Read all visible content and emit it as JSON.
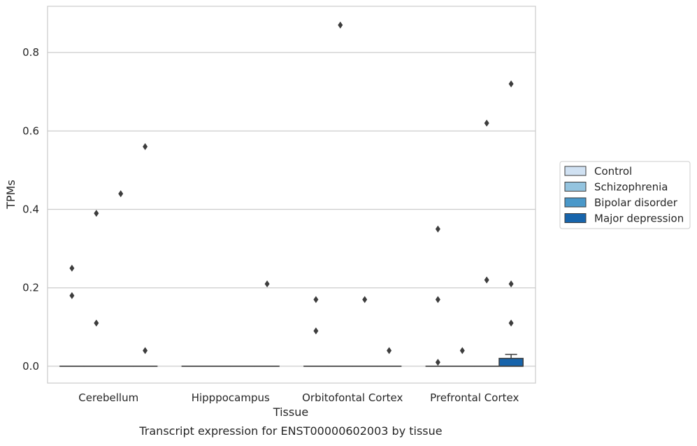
{
  "chart_data": {
    "type": "box",
    "title": "",
    "caption": "Transcript expression for ENST00000602003 by tissue",
    "xlabel": "Tissue",
    "ylabel": "TPMs",
    "ylim": [
      -0.043,
      0.918
    ],
    "yticks": [
      0.0,
      0.2,
      0.4,
      0.6,
      0.8
    ],
    "ytick_labels": [
      "0.0",
      "0.2",
      "0.4",
      "0.6",
      "0.8"
    ],
    "grid": "horizontal",
    "legend_position": "right",
    "categories": [
      "Cerebellum",
      "Hipppocampus",
      "Orbitofontal Cortex",
      "Prefrontal Cortex"
    ],
    "series": [
      {
        "name": "Control",
        "color": "#d0e1f2",
        "boxes": [
          {
            "q1": 0,
            "median": 0,
            "q3": 0,
            "whisker_low": 0,
            "whisker_high": 0,
            "outliers": [
              0.25,
              0.18
            ]
          },
          {
            "q1": 0,
            "median": 0,
            "q3": 0,
            "whisker_low": 0,
            "whisker_high": 0,
            "outliers": []
          },
          {
            "q1": 0,
            "median": 0,
            "q3": 0,
            "whisker_low": 0,
            "whisker_high": 0,
            "outliers": [
              0.17,
              0.09
            ]
          },
          {
            "q1": 0,
            "median": 0,
            "q3": 0,
            "whisker_low": 0,
            "whisker_high": 0,
            "outliers": [
              0.35,
              0.17,
              0.01
            ]
          }
        ]
      },
      {
        "name": "Schizophrenia",
        "color": "#94c4df",
        "boxes": [
          {
            "q1": 0,
            "median": 0,
            "q3": 0,
            "whisker_low": 0,
            "whisker_high": 0,
            "outliers": [
              0.39,
              0.11
            ]
          },
          {
            "q1": 0,
            "median": 0,
            "q3": 0,
            "whisker_low": 0,
            "whisker_high": 0,
            "outliers": []
          },
          {
            "q1": 0,
            "median": 0,
            "q3": 0,
            "whisker_low": 0,
            "whisker_high": 0,
            "outliers": [
              0.87
            ]
          },
          {
            "q1": 0,
            "median": 0,
            "q3": 0,
            "whisker_low": 0,
            "whisker_high": 0,
            "outliers": [
              0.04
            ]
          }
        ]
      },
      {
        "name": "Bipolar disorder",
        "color": "#4a98c9",
        "boxes": [
          {
            "q1": 0,
            "median": 0,
            "q3": 0,
            "whisker_low": 0,
            "whisker_high": 0,
            "outliers": [
              0.44
            ]
          },
          {
            "q1": 0,
            "median": 0,
            "q3": 0,
            "whisker_low": 0,
            "whisker_high": 0,
            "outliers": []
          },
          {
            "q1": 0,
            "median": 0,
            "q3": 0,
            "whisker_low": 0,
            "whisker_high": 0,
            "outliers": [
              0.17
            ]
          },
          {
            "q1": 0,
            "median": 0,
            "q3": 0,
            "whisker_low": 0,
            "whisker_high": 0,
            "outliers": [
              0.62,
              0.22
            ]
          }
        ]
      },
      {
        "name": "Major depression",
        "color": "#1764ab",
        "boxes": [
          {
            "q1": 0,
            "median": 0,
            "q3": 0,
            "whisker_low": 0,
            "whisker_high": 0,
            "outliers": [
              0.56,
              0.04
            ]
          },
          {
            "q1": 0,
            "median": 0,
            "q3": 0,
            "whisker_low": 0,
            "whisker_high": 0,
            "outliers": [
              0.21
            ]
          },
          {
            "q1": 0,
            "median": 0,
            "q3": 0,
            "whisker_low": 0,
            "whisker_high": 0,
            "outliers": [
              0.04
            ]
          },
          {
            "q1": 0,
            "median": 0,
            "q3": 0.02,
            "whisker_low": 0,
            "whisker_high": 0.03,
            "outliers": [
              0.72,
              0.21,
              0.11
            ]
          }
        ]
      }
    ]
  }
}
